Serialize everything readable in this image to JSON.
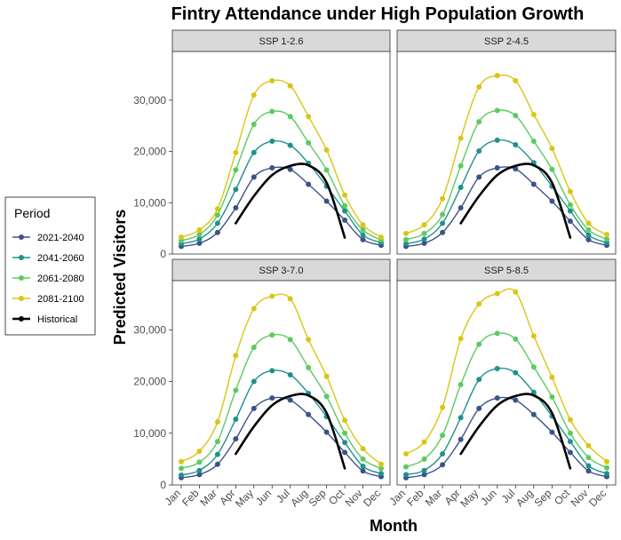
{
  "chart_data": {
    "type": "line",
    "title": "Fintry Attendance under High Population Growth",
    "xlabel": "Month",
    "ylabel": "Predicted Visitors",
    "categories": [
      "Jan",
      "Feb",
      "Mar",
      "Apr",
      "May",
      "Jun",
      "Jul",
      "Aug",
      "Sep",
      "Oct",
      "Nov",
      "Dec"
    ],
    "ylim": [
      0,
      39500
    ],
    "yticks": [
      0,
      10000,
      20000,
      30000
    ],
    "ytick_labels": [
      "0",
      "10,000",
      "20,000",
      "30,000"
    ],
    "grid": false,
    "legend": {
      "title": "Period",
      "position": "left",
      "entries": [
        {
          "label": "2021-2040",
          "color": "#3b528b"
        },
        {
          "label": "2041-2060",
          "color": "#21908c"
        },
        {
          "label": "2061-2080",
          "color": "#5ec962"
        },
        {
          "label": "2081-2100",
          "color": "#d9c614"
        },
        {
          "label": "Historical",
          "color": "#000000"
        }
      ]
    },
    "panels": [
      {
        "label": "SSP 1-2.6",
        "series": [
          {
            "name": "2021-2040",
            "values": [
              1500,
              2100,
              4200,
              9000,
              15000,
              16800,
              16500,
              13600,
              10300,
              6600,
              2800,
              1700
            ]
          },
          {
            "name": "2041-2060",
            "values": [
              2000,
              2900,
              6000,
              12600,
              19800,
              22000,
              21200,
              17700,
              13200,
              8400,
              3700,
              2200
            ]
          },
          {
            "name": "2061-2080",
            "values": [
              2600,
              3800,
              7600,
              16400,
              25300,
              27800,
              26800,
              21700,
              16400,
              9400,
              4700,
              2700
            ]
          },
          {
            "name": "2081-2100",
            "values": [
              3300,
              4700,
              8800,
              19800,
              31000,
              33800,
              32800,
              26800,
              20300,
              11500,
              5700,
              3300
            ]
          },
          {
            "name": "Historical",
            "values": [
              null,
              null,
              null,
              6000,
              11300,
              15400,
              17200,
              17300,
              13900,
              3200,
              null,
              null
            ]
          }
        ]
      },
      {
        "label": "SSP 2-4.5",
        "series": [
          {
            "name": "2021-2040",
            "values": [
              1500,
              2100,
              4200,
              9000,
              15000,
              16800,
              16600,
              13600,
              10300,
              6400,
              2800,
              1700
            ]
          },
          {
            "name": "2041-2060",
            "values": [
              2000,
              2900,
              6000,
              13000,
              20100,
              22200,
              21300,
              17800,
              13200,
              8400,
              3700,
              2200
            ]
          },
          {
            "name": "2061-2080",
            "values": [
              2800,
              4000,
              7700,
              17200,
              25800,
              28000,
              27000,
              22000,
              16500,
              9600,
              4700,
              2900
            ]
          },
          {
            "name": "2081-2100",
            "values": [
              4000,
              5700,
              10800,
              22600,
              32600,
              34800,
              33800,
              27200,
              20600,
              12200,
              6000,
              3800
            ]
          },
          {
            "name": "Historical",
            "values": [
              null,
              null,
              null,
              6000,
              11300,
              15400,
              17200,
              17300,
              13900,
              3200,
              null,
              null
            ]
          }
        ]
      },
      {
        "label": "SSP 3-7.0",
        "series": [
          {
            "name": "2021-2040",
            "values": [
              1400,
              2000,
              4000,
              8900,
              14800,
              16800,
              16400,
              13600,
              10200,
              6300,
              2700,
              1600
            ]
          },
          {
            "name": "2041-2060",
            "values": [
              1900,
              2800,
              5900,
              12700,
              20000,
              22100,
              21300,
              17700,
              13200,
              8200,
              3600,
              2200
            ]
          },
          {
            "name": "2061-2080",
            "values": [
              3200,
              4400,
              8400,
              18300,
              26600,
              29000,
              28100,
              22700,
              17100,
              10000,
              5000,
              3200
            ]
          },
          {
            "name": "2081-2100",
            "values": [
              4500,
              6500,
              12200,
              25000,
              34100,
              36500,
              36000,
              28100,
              21000,
              12500,
              7000,
              4000
            ]
          },
          {
            "name": "Historical",
            "values": [
              null,
              null,
              null,
              6000,
              11300,
              15400,
              17200,
              17300,
              13900,
              3200,
              null,
              null
            ]
          }
        ]
      },
      {
        "label": "SSP 5-8.5",
        "series": [
          {
            "name": "2021-2040",
            "values": [
              1400,
              2000,
              3900,
              8800,
              14800,
              16800,
              16400,
              13600,
              10200,
              6300,
              2700,
              1600
            ]
          },
          {
            "name": "2041-2060",
            "values": [
              2000,
              2800,
              6000,
              13000,
              20400,
              22500,
              21700,
              17900,
              13300,
              8400,
              3700,
              2200
            ]
          },
          {
            "name": "2061-2080",
            "values": [
              3500,
              5000,
              9600,
              19400,
              27200,
              29300,
              28200,
              22800,
              17000,
              10000,
              5300,
              3300
            ]
          },
          {
            "name": "2081-2100",
            "values": [
              6000,
              8300,
              15000,
              28300,
              35000,
              37000,
              37300,
              28800,
              20800,
              12600,
              7600,
              4500
            ]
          },
          {
            "name": "Historical",
            "values": [
              null,
              null,
              null,
              6000,
              11300,
              15400,
              17200,
              17300,
              13900,
              3200,
              null,
              null
            ]
          }
        ]
      }
    ]
  }
}
